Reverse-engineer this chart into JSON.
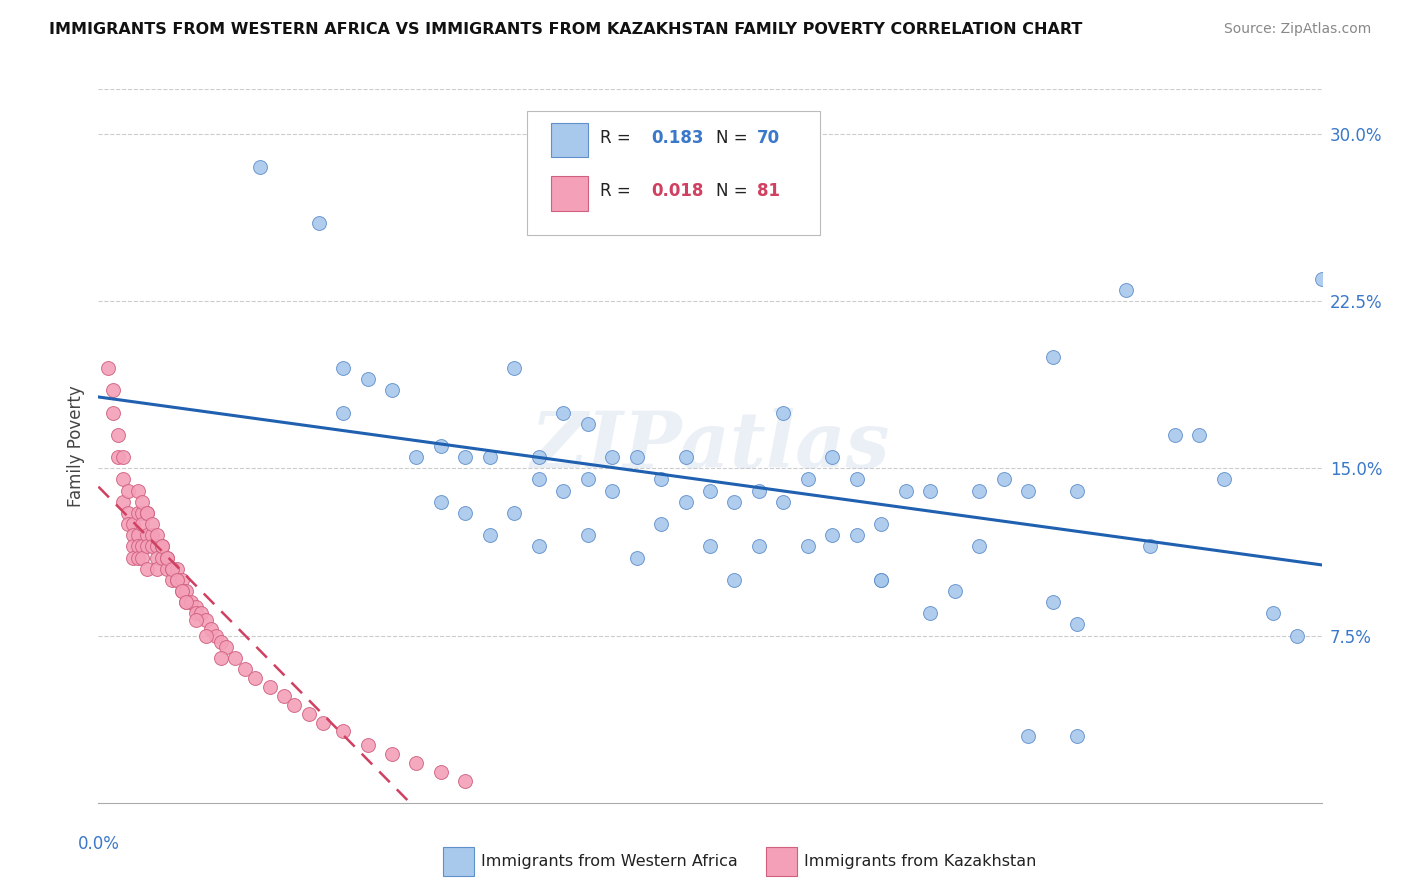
{
  "title": "IMMIGRANTS FROM WESTERN AFRICA VS IMMIGRANTS FROM KAZAKHSTAN FAMILY POVERTY CORRELATION CHART",
  "source": "Source: ZipAtlas.com",
  "ylabel": "Family Poverty",
  "ytick_labels": [
    "7.5%",
    "15.0%",
    "22.5%",
    "30.0%"
  ],
  "ytick_values": [
    0.075,
    0.15,
    0.225,
    0.3
  ],
  "xlim": [
    0.0,
    0.25
  ],
  "ylim": [
    0.0,
    0.32
  ],
  "color_blue": "#A8C8EC",
  "color_pink": "#F4A0B8",
  "color_blue_edge": "#6090CC",
  "color_pink_edge": "#D06080",
  "color_blue_line": "#2060B0",
  "color_pink_line": "#D04060",
  "legend_label1": "Immigrants from Western Africa",
  "legend_label2": "Immigrants from Kazakhstan",
  "watermark": "ZIPatlas",
  "scatter_blue_x": [
    0.033,
    0.045,
    0.05,
    0.05,
    0.055,
    0.06,
    0.065,
    0.07,
    0.07,
    0.075,
    0.075,
    0.08,
    0.08,
    0.085,
    0.085,
    0.09,
    0.09,
    0.09,
    0.095,
    0.095,
    0.1,
    0.1,
    0.1,
    0.105,
    0.105,
    0.11,
    0.11,
    0.115,
    0.115,
    0.12,
    0.12,
    0.125,
    0.125,
    0.13,
    0.13,
    0.135,
    0.135,
    0.14,
    0.14,
    0.145,
    0.145,
    0.15,
    0.15,
    0.155,
    0.155,
    0.16,
    0.16,
    0.165,
    0.17,
    0.175,
    0.18,
    0.18,
    0.185,
    0.19,
    0.195,
    0.195,
    0.2,
    0.2,
    0.21,
    0.215,
    0.22,
    0.225,
    0.23,
    0.24,
    0.245,
    0.25,
    0.16,
    0.17,
    0.19,
    0.2
  ],
  "scatter_blue_y": [
    0.285,
    0.26,
    0.195,
    0.175,
    0.19,
    0.185,
    0.155,
    0.16,
    0.135,
    0.155,
    0.13,
    0.155,
    0.12,
    0.195,
    0.13,
    0.155,
    0.145,
    0.115,
    0.175,
    0.14,
    0.17,
    0.145,
    0.12,
    0.155,
    0.14,
    0.155,
    0.11,
    0.145,
    0.125,
    0.155,
    0.135,
    0.14,
    0.115,
    0.135,
    0.1,
    0.14,
    0.115,
    0.175,
    0.135,
    0.145,
    0.115,
    0.155,
    0.12,
    0.145,
    0.12,
    0.125,
    0.1,
    0.14,
    0.14,
    0.095,
    0.14,
    0.115,
    0.145,
    0.14,
    0.09,
    0.2,
    0.14,
    0.08,
    0.23,
    0.115,
    0.165,
    0.165,
    0.145,
    0.085,
    0.075,
    0.235,
    0.1,
    0.085,
    0.03,
    0.03
  ],
  "scatter_pink_x": [
    0.002,
    0.003,
    0.003,
    0.004,
    0.004,
    0.005,
    0.005,
    0.005,
    0.006,
    0.006,
    0.006,
    0.007,
    0.007,
    0.007,
    0.007,
    0.008,
    0.008,
    0.008,
    0.008,
    0.009,
    0.009,
    0.009,
    0.009,
    0.01,
    0.01,
    0.01,
    0.01,
    0.011,
    0.011,
    0.012,
    0.012,
    0.012,
    0.013,
    0.013,
    0.014,
    0.014,
    0.015,
    0.015,
    0.016,
    0.016,
    0.017,
    0.017,
    0.018,
    0.018,
    0.019,
    0.02,
    0.02,
    0.021,
    0.022,
    0.023,
    0.024,
    0.025,
    0.026,
    0.028,
    0.03,
    0.032,
    0.035,
    0.038,
    0.04,
    0.043,
    0.046,
    0.05,
    0.055,
    0.06,
    0.065,
    0.07,
    0.075,
    0.008,
    0.009,
    0.01,
    0.011,
    0.012,
    0.013,
    0.014,
    0.015,
    0.016,
    0.017,
    0.018,
    0.02,
    0.022,
    0.025
  ],
  "scatter_pink_y": [
    0.195,
    0.185,
    0.175,
    0.165,
    0.155,
    0.155,
    0.145,
    0.135,
    0.14,
    0.13,
    0.125,
    0.125,
    0.12,
    0.115,
    0.11,
    0.13,
    0.12,
    0.115,
    0.11,
    0.13,
    0.125,
    0.115,
    0.11,
    0.13,
    0.12,
    0.115,
    0.105,
    0.12,
    0.115,
    0.115,
    0.11,
    0.105,
    0.115,
    0.11,
    0.11,
    0.105,
    0.105,
    0.1,
    0.105,
    0.1,
    0.1,
    0.095,
    0.095,
    0.09,
    0.09,
    0.088,
    0.085,
    0.085,
    0.082,
    0.078,
    0.075,
    0.072,
    0.07,
    0.065,
    0.06,
    0.056,
    0.052,
    0.048,
    0.044,
    0.04,
    0.036,
    0.032,
    0.026,
    0.022,
    0.018,
    0.014,
    0.01,
    0.14,
    0.135,
    0.13,
    0.125,
    0.12,
    0.115,
    0.11,
    0.105,
    0.1,
    0.095,
    0.09,
    0.082,
    0.075,
    0.065
  ]
}
